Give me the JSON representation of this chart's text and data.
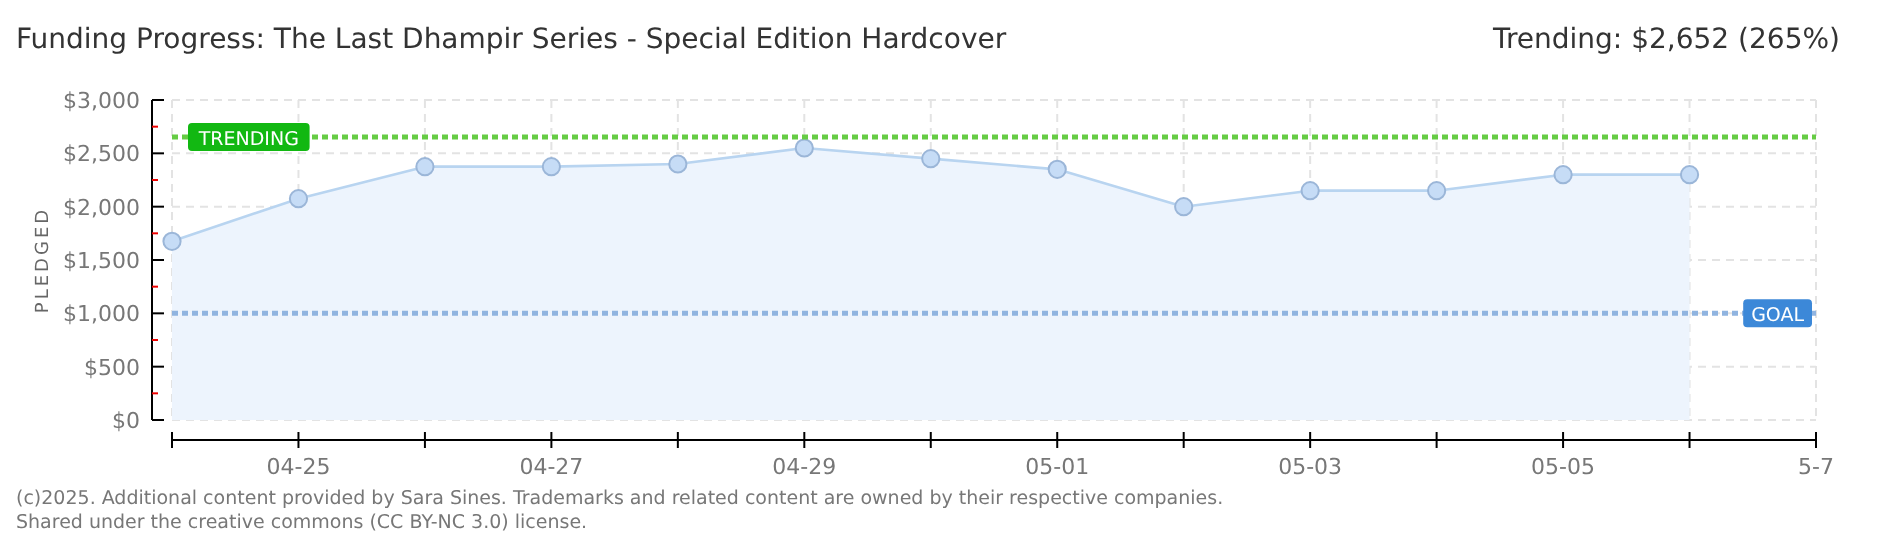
{
  "chart_data": {
    "type": "area",
    "title": "Funding Progress: The Last Dhampir Series - Special Edition Hardcover",
    "subtitle": "Trending:  $2,652 (265%)",
    "ylabel": "PLEDGED",
    "categories": [
      null,
      "04-25",
      null,
      "04-27",
      null,
      "04-29",
      null,
      "05-01",
      null,
      "05-03",
      null,
      "05-05",
      null,
      "5-7"
    ],
    "series": [
      {
        "color": "#b8d4f0",
        "values": [
          1675,
          2075,
          2375,
          2375,
          2400,
          2550,
          2450,
          2350,
          2000,
          2150,
          2150,
          2300,
          2300,
          null
        ]
      }
    ],
    "ylim": [
      0,
      3000
    ],
    "yticks": [
      {
        "value": 0,
        "label": "$0"
      },
      {
        "value": 250,
        "label": null
      },
      {
        "value": 500,
        "label": "$500"
      },
      {
        "value": 750,
        "label": null
      },
      {
        "value": 1000,
        "label": "$1,000"
      },
      {
        "value": 1250,
        "label": null
      },
      {
        "value": 1500,
        "label": "$1,500"
      },
      {
        "value": 1750,
        "label": null
      },
      {
        "value": 2000,
        "label": "$2,000"
      },
      {
        "value": 2250,
        "label": null
      },
      {
        "value": 2500,
        "label": "$2,500"
      },
      {
        "value": 2750,
        "label": null
      },
      {
        "value": 3000,
        "label": "$3,000"
      }
    ],
    "grid": true,
    "marker": "circle",
    "ref_lines": [
      {
        "axis": "y",
        "value": 2652,
        "label": "TRENDING",
        "color": "#66cc44",
        "line_style": "dotted"
      },
      {
        "axis": "y",
        "value": 1000,
        "label": "GOAL",
        "color": "#90b4e0",
        "line_style": "dotted"
      }
    ],
    "annotations": [
      "(c)2025. Additional content provided by Sara Sines. Trademarks and related content are owned by their respective companies.",
      "Shared under the creative commons (CC BY-NC 3.0) license."
    ]
  }
}
